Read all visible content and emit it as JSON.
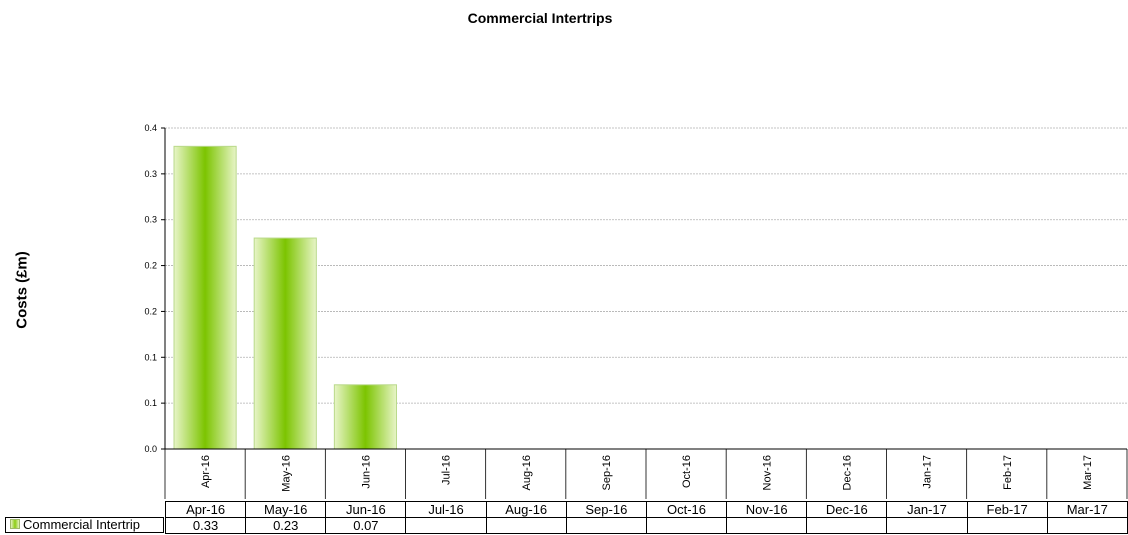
{
  "chart_data": {
    "type": "bar",
    "title": "Commercial Intertrips",
    "ylabel": "Costs (£m)",
    "xlabel": "",
    "categories": [
      "Apr-16",
      "May-16",
      "Jun-16",
      "Jul-16",
      "Aug-16",
      "Sep-16",
      "Oct-16",
      "Nov-16",
      "Dec-16",
      "Jan-17",
      "Feb-17",
      "Mar-17"
    ],
    "series": [
      {
        "name": "Commercial Intertrip",
        "values": [
          0.33,
          0.23,
          0.07,
          null,
          null,
          null,
          null,
          null,
          null,
          null,
          null,
          null
        ]
      }
    ],
    "table_values": [
      "0.33",
      "0.23",
      "0.07",
      "",
      "",
      "",
      "",
      "",
      "",
      "",
      "",
      ""
    ],
    "y_ticks": [
      "0.0",
      "0.1",
      "0.1",
      "0.2",
      "0.2",
      "0.3",
      "0.3",
      "0.4"
    ],
    "ylim": [
      0,
      0.35
    ],
    "grid": true,
    "legend": "data-table",
    "colors": {
      "bar_edge": "#8ccc14",
      "bar_center": "#7cc400",
      "bar_light": "#e8f5c8",
      "grid": "#b0b0b0"
    }
  }
}
